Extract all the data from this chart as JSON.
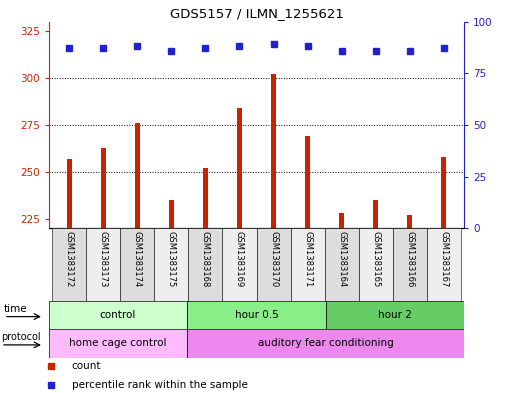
{
  "title": "GDS5157 / ILMN_1255621",
  "samples": [
    "GSM1383172",
    "GSM1383173",
    "GSM1383174",
    "GSM1383175",
    "GSM1383168",
    "GSM1383169",
    "GSM1383170",
    "GSM1383171",
    "GSM1383164",
    "GSM1383165",
    "GSM1383166",
    "GSM1383167"
  ],
  "bar_values": [
    257,
    263,
    276,
    235,
    252,
    284,
    302,
    269,
    228,
    235,
    227,
    258
  ],
  "percentile_values": [
    87,
    87,
    88,
    86,
    87,
    88,
    89,
    88,
    86,
    86,
    86,
    87
  ],
  "ylim_left": [
    220,
    330
  ],
  "ylim_right": [
    0,
    100
  ],
  "yticks_left": [
    225,
    250,
    275,
    300,
    325
  ],
  "yticks_right": [
    0,
    25,
    50,
    75,
    100
  ],
  "bar_color": "#cc2200",
  "dot_color": "#2222cc",
  "grid_color": "#000000",
  "time_groups": [
    {
      "label": "control",
      "start": 0,
      "end": 4,
      "color": "#ccffcc"
    },
    {
      "label": "hour 0.5",
      "start": 4,
      "end": 8,
      "color": "#88ee88"
    },
    {
      "label": "hour 2",
      "start": 8,
      "end": 12,
      "color": "#66cc66"
    }
  ],
  "protocol_groups": [
    {
      "label": "home cage control",
      "start": 0,
      "end": 4,
      "color": "#ffbbff"
    },
    {
      "label": "auditory fear conditioning",
      "start": 4,
      "end": 12,
      "color": "#ee88ee"
    }
  ],
  "time_label": "time",
  "protocol_label": "protocol",
  "legend_count_label": "count",
  "legend_percentile_label": "percentile rank within the sample",
  "background_color": "#ffffff",
  "left_axis_color": "#cc2200",
  "right_axis_color": "#2222cc",
  "bar_width": 0.15
}
